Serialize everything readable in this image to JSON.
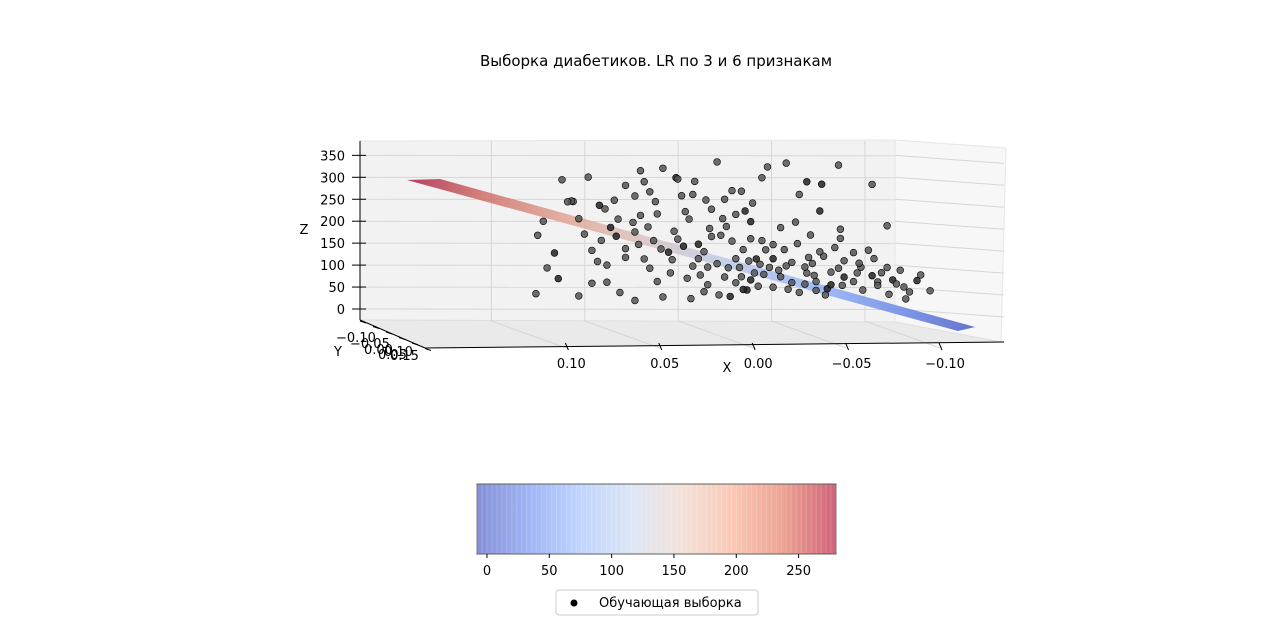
{
  "chart_data": {
    "type": "scatter3d",
    "title": "Выборка диабетиков. LR по 3 и 6 признакам",
    "axes": {
      "x": {
        "label": "X",
        "ticks": [
          "0.10",
          "0.05",
          "0.00",
          "−0.05",
          "−0.10"
        ],
        "range": [
          -0.11,
          0.14
        ]
      },
      "y": {
        "label": "Y",
        "ticks": [
          "−0.10",
          "−0.05",
          "0.00",
          "0.05",
          "0.10",
          "0.15"
        ],
        "range": [
          -0.12,
          0.16
        ]
      },
      "z": {
        "label": "Z",
        "ticks": [
          "0",
          "50",
          "100",
          "150",
          "200",
          "250",
          "300",
          "350"
        ],
        "range": [
          0,
          360
        ]
      }
    },
    "grid": true,
    "surface": {
      "name": "regression plane",
      "colormap": "coolwarm",
      "z_at_x_0_12": 280,
      "z_at_x_minus_0_10": 5
    },
    "colorbar": {
      "ticks": [
        "0",
        "50",
        "100",
        "150",
        "200",
        "250"
      ],
      "range": [
        -8,
        280
      ],
      "colors": [
        "#3b4cc0",
        "#6788ee",
        "#9abbff",
        "#c9d7f0",
        "#edd1c2",
        "#f7a889",
        "#e26952",
        "#b40426"
      ]
    },
    "legend": {
      "label": "Обучающая выборка",
      "placement": "bottom-center"
    },
    "series": [
      {
        "name": "Обучающая выборка",
        "color": "#000000",
        "points": [
          [
            0.115,
            200
          ],
          [
            0.118,
            168
          ],
          [
            0.105,
            295
          ],
          [
            0.085,
            238
          ],
          [
            0.082,
            230
          ],
          [
            0.099,
            246
          ],
          [
            0.091,
            302
          ],
          [
            0.071,
            284
          ],
          [
            0.061,
            293
          ],
          [
            0.055,
            248
          ],
          [
            0.044,
            303
          ],
          [
            0.022,
            340
          ],
          [
            -0.002,
            305
          ],
          [
            -0.005,
            330
          ],
          [
            -0.015,
            339
          ],
          [
            -0.043,
            336
          ],
          [
            -0.061,
            293
          ],
          [
            -0.034,
            292
          ],
          [
            0.014,
            275
          ],
          [
            0.035,
            265
          ],
          [
            0.066,
            260
          ],
          [
            0.077,
            250
          ],
          [
            0.063,
            216
          ],
          [
            0.054,
            220
          ],
          [
            0.079,
            188
          ],
          [
            0.066,
            178
          ],
          [
            0.045,
            181
          ],
          [
            0.039,
            226
          ],
          [
            0.028,
            253
          ],
          [
            0.025,
            232
          ],
          [
            0.012,
            221
          ],
          [
            0.004,
            205
          ],
          [
            -0.012,
            192
          ],
          [
            -0.028,
            176
          ],
          [
            -0.044,
            169
          ],
          [
            -0.051,
            137
          ],
          [
            -0.062,
            124
          ],
          [
            -0.076,
            98
          ],
          [
            -0.085,
            75
          ],
          [
            -0.092,
            52
          ],
          [
            -0.078,
            60
          ],
          [
            -0.064,
            71
          ],
          [
            -0.045,
            62
          ],
          [
            -0.025,
            64
          ],
          [
            -0.008,
            56
          ],
          [
            0.006,
            49
          ],
          [
            0.021,
            37
          ],
          [
            0.036,
            28
          ],
          [
            0.051,
            31
          ],
          [
            0.066,
            22
          ],
          [
            0.081,
            63
          ],
          [
            0.096,
            31
          ],
          [
            0.107,
            70
          ],
          [
            0.086,
            110
          ],
          [
            0.071,
            140
          ],
          [
            0.056,
            159
          ],
          [
            0.046,
            116
          ],
          [
            0.031,
            82
          ],
          [
            0.016,
            99
          ],
          [
            0.001,
            120
          ],
          [
            -0.014,
            142
          ],
          [
            -0.029,
            111
          ],
          [
            -0.039,
            92
          ],
          [
            -0.059,
            143
          ],
          [
            -0.069,
            199
          ],
          [
            -0.022,
            268
          ],
          [
            -0.033,
            231
          ],
          [
            0.043,
            300
          ],
          [
            0.058,
            270
          ],
          [
            0.089,
            135
          ],
          [
            0.096,
            207
          ],
          [
            0.075,
            207
          ],
          [
            0.052,
            140
          ],
          [
            0.032,
            152
          ],
          [
            0.02,
            173
          ],
          [
            -0.002,
            162
          ],
          [
            -0.018,
            113
          ],
          [
            -0.035,
            128
          ],
          [
            -0.055,
            104
          ],
          [
            -0.066,
            92
          ],
          [
            -0.072,
            76
          ],
          [
            -0.056,
            52
          ],
          [
            -0.036,
            40
          ],
          [
            -0.016,
            52
          ],
          [
            0.002,
            88
          ],
          [
            0.012,
            120
          ],
          [
            0.026,
            188
          ],
          [
            0.04,
            147
          ],
          [
            0.061,
            117
          ],
          [
            0.047,
            86
          ],
          [
            0.027,
            60
          ],
          [
            0.009,
            79
          ],
          [
            -0.006,
            101
          ],
          [
            -0.026,
            89
          ],
          [
            -0.046,
            81
          ],
          [
            -0.081,
            49
          ],
          [
            0.014,
            160
          ],
          [
            -0.004,
            141
          ],
          [
            -0.021,
            156
          ],
          [
            -0.041,
            148
          ],
          [
            0.022,
            108
          ],
          [
            0.004,
            72
          ],
          [
            -0.012,
            80
          ],
          [
            -0.031,
            70
          ],
          [
            -0.051,
            71
          ],
          [
            0.067,
            200
          ],
          [
            0.037,
            209
          ],
          [
            0.017,
            193
          ],
          [
            -0.008,
            121
          ],
          [
            -0.025,
            103
          ],
          [
            0.032,
            119
          ],
          [
            0.008,
            141
          ],
          [
            -0.018,
            67
          ],
          [
            0.058,
            96
          ],
          [
            0.1,
            247
          ],
          [
            0.109,
            128
          ],
          [
            0.113,
            94
          ],
          [
            0.119,
            35
          ],
          [
            0.102,
            245
          ],
          [
            0.089,
            60
          ],
          [
            0.074,
            40
          ],
          [
            0.003,
            247
          ],
          [
            -0.026,
            297
          ],
          [
            0.034,
            295
          ],
          [
            0.063,
            318
          ],
          [
            0.051,
            324
          ],
          [
            0.041,
            262
          ],
          [
            0.009,
            274
          ],
          [
            0.018,
            255
          ],
          [
            0.007,
            229
          ],
          [
            0.025,
            170
          ],
          [
            0.043,
            163
          ],
          [
            0.01,
            100
          ],
          [
            -0.003,
            85
          ],
          [
            -0.011,
            95
          ],
          [
            -0.03,
            84
          ],
          [
            -0.037,
            54
          ],
          [
            -0.046,
            118
          ],
          [
            -0.053,
            91
          ],
          [
            -0.064,
            63
          ],
          [
            -0.07,
            43
          ],
          [
            -0.079,
            33
          ],
          [
            0.029,
            44
          ],
          [
            0.015,
            34
          ],
          [
            0.0,
            58
          ],
          [
            -0.022,
            45
          ],
          [
            0.071,
            120
          ],
          [
            0.081,
            102
          ],
          [
            0.093,
            172
          ],
          [
            0.084,
            158
          ],
          [
            0.048,
            133
          ],
          [
            0.035,
            102
          ],
          [
            0.018,
            78
          ],
          [
            -0.001,
            108
          ],
          [
            -0.008,
            153
          ],
          [
            -0.027,
            125
          ],
          [
            -0.043,
            101
          ],
          [
            -0.061,
            85
          ],
          [
            -0.074,
            67
          ],
          [
            0.004,
            166
          ],
          [
            0.019,
            211
          ],
          [
            0.059,
            190
          ],
          [
            0.029,
            135
          ],
          [
            -0.015,
            105
          ],
          [
            -0.039,
            63
          ],
          [
            0.005,
            115
          ],
          [
            -0.033,
            138
          ],
          [
            0.012,
            65
          ],
          [
            0.038,
            74
          ],
          [
            0.054,
            66
          ],
          [
            0.064,
            150
          ],
          [
            0.076,
            168
          ],
          [
            -0.054,
            113
          ],
          [
            -0.069,
            104
          ],
          [
            -0.087,
            88
          ],
          [
            -0.02,
            205
          ],
          [
            -0.044,
            190
          ],
          [
            0.027,
            100
          ],
          [
            0.008,
            50
          ],
          [
            -0.031,
            50
          ]
        ]
      }
    ]
  }
}
